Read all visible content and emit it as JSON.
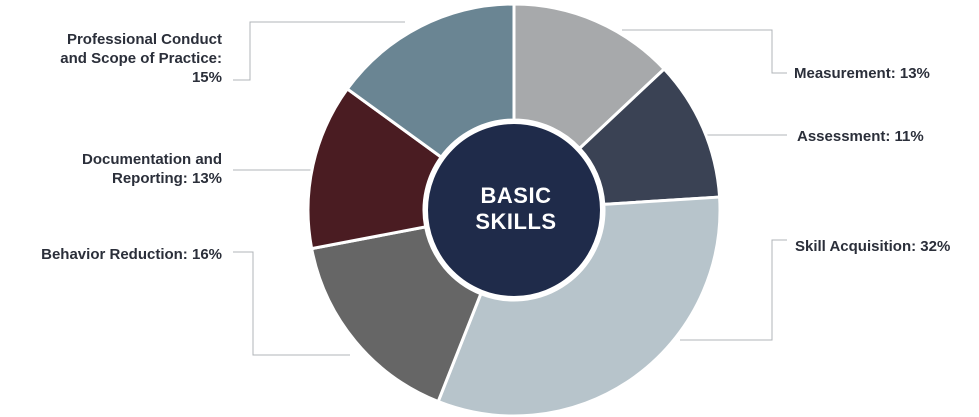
{
  "chart_data": {
    "type": "pie",
    "center_label": "BASIC SKILLS",
    "categories": [
      "Measurement",
      "Assessment",
      "Skill Acquisition",
      "Behavior Reduction",
      "Documentation and Reporting",
      "Professional Conduct and Scope of Practice"
    ],
    "values": [
      13,
      11,
      32,
      16,
      13,
      15
    ],
    "labels": [
      "Measurement: 13%",
      "Assessment: 11%",
      "Skill Acquisition: 32%",
      "Behavior Reduction: 16%",
      "Documentation and Reporting: 13%",
      "Professional Conduct and Scope of Practice: 15%"
    ],
    "colors": [
      "#a7a9ab",
      "#3a4254",
      "#b7c4cb",
      "#666666",
      "#4a1c22",
      "#6a8593"
    ],
    "center_color": "#1f2b4a",
    "legend": "none"
  }
}
